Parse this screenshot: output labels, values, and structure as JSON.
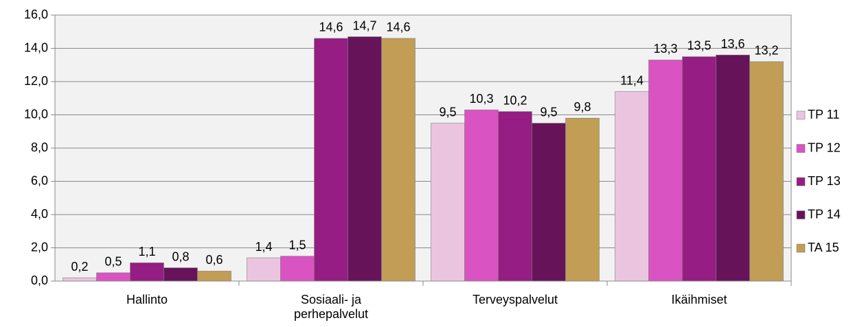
{
  "chart_data": {
    "type": "bar",
    "categories": [
      "Hallinto",
      "Sosiaali- ja perhepalvelut",
      "Terveyspalvelut",
      "Ikäihmiset"
    ],
    "series": [
      {
        "name": "TP 11",
        "color": "#ebc5df",
        "values": [
          0.2,
          1.4,
          9.5,
          11.4
        ],
        "value_labels": [
          "0,2",
          "1,4",
          "9,5",
          "11,4"
        ]
      },
      {
        "name": "TP 12",
        "color": "#d953c2",
        "values": [
          0.5,
          1.5,
          10.3,
          13.3
        ],
        "value_labels": [
          "0,5",
          "1,5",
          "10,3",
          "13,3"
        ]
      },
      {
        "name": "TP 13",
        "color": "#951d83",
        "values": [
          1.1,
          14.6,
          10.2,
          13.5
        ],
        "value_labels": [
          "1,1",
          "14,6",
          "10,2",
          "13,5"
        ]
      },
      {
        "name": "TP 14",
        "color": "#67135a",
        "values": [
          0.8,
          14.7,
          9.5,
          13.6
        ],
        "value_labels": [
          "0,8",
          "14,7",
          "9,5",
          "13,6"
        ]
      },
      {
        "name": "TA 15",
        "color": "#c19d55",
        "values": [
          0.6,
          14.6,
          9.8,
          13.2
        ],
        "value_labels": [
          "0,6",
          "14,6",
          "9,8",
          "13,2"
        ]
      }
    ],
    "ylim": [
      0,
      16
    ],
    "yticks": [
      {
        "value": 0,
        "label": "0,0"
      },
      {
        "value": 2,
        "label": "2,0"
      },
      {
        "value": 4,
        "label": "4,0"
      },
      {
        "value": 6,
        "label": "6,0"
      },
      {
        "value": 8,
        "label": "8,0"
      },
      {
        "value": 10,
        "label": "10,0"
      },
      {
        "value": 12,
        "label": "12,0"
      },
      {
        "value": 14,
        "label": "14,0"
      },
      {
        "value": 16,
        "label": "16,0"
      }
    ],
    "grid": true,
    "legend": "right"
  }
}
